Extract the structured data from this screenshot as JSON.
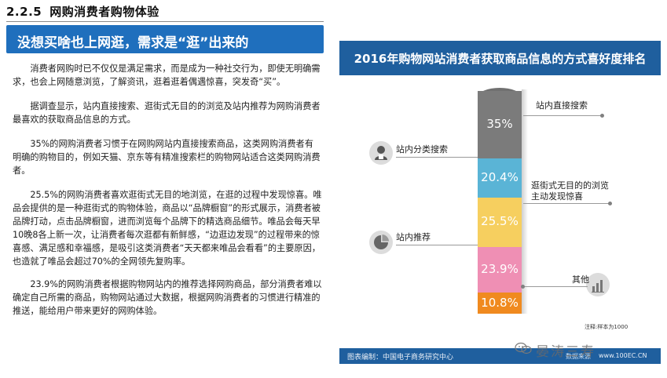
{
  "section": {
    "number": "2.2.5",
    "title": "网购消费者购物体验"
  },
  "banner": {
    "text": "没想买啥也上网逛，需求是“逛”出来的"
  },
  "paragraphs": [
    "消费者网购时已不仅仅是满足需求，而是成为一种社交行为，即使无明确需求，也会上网随意浏览，了解资讯，逛着逛着偶遇惊喜，突发奇“买”。",
    "据调查显示，站内直接搜索、逛街式无目的的浏览及站内推荐为网购消费者最喜欢的获取商品信息的方式。",
    "35%的网购消费者习惯于在网购网站内直接搜索商品，这类网购消费者有明确的购物目的，例如天猫、京东等有精准搜索栏的购物网站适合这类网购消费者。",
    "25.5%的网购消费者喜欢逛街式无目的地浏览，在逛的过程中发现惊喜。唯品会提供的是一种逛街式的购物体验，商品以“品牌橱窗”的形式展示，消费者被品牌打动，点击品牌橱窗，进而浏览每个品牌下的精选商品细节。唯品会每天早10晚8各上新一次，让消费者每次逛都有新鲜感，“边逛边发现”的过程带来的惊喜感、满足感和幸福感，是吸引这类消费者“天天都来唯品会看看”的主要原因，也造就了唯品会超过70%的全网领先复购率。",
    "23.9%的网购消费者根据购物网站内的推荐选择网购商品，部分消费者难以确定自己所需的商品，购物网站通过大数据，根据网购消费者的习惯进行精准的推送，能给用户带来更好的网购体验。"
  ],
  "chart_data": {
    "type": "bar",
    "title": "2016年购物网站消费者获取商品信息的方式喜好度排名",
    "categories": [
      "站内直接搜索",
      "站内分类搜索",
      "逛街式无目的的浏览主动发现惊喜",
      "站内推荐",
      "其他"
    ],
    "values": [
      35,
      20.4,
      25.5,
      23.9,
      10.8
    ],
    "value_labels": [
      "35%",
      "20.4%",
      "25.5%",
      "23.9%",
      "10.8%"
    ],
    "label_lines": [
      [
        "站内直接搜索"
      ],
      [
        "站内分类搜索"
      ],
      [
        "逛街式无目的的浏览",
        "主动发现惊喜"
      ],
      [
        "站内推荐"
      ],
      [
        "其他"
      ]
    ],
    "colors": [
      "#7b7b7b",
      "#5ab4d6",
      "#f6cf5f",
      "#ef8fb4",
      "#f08a1f"
    ],
    "note": "注释:样本为1000",
    "footer": "图表编制：中国电子商务研究中心",
    "footer_right": "数据来源",
    "footer_url": "www.100EC.CN"
  },
  "watermark": {
    "text": "晏涛三寿"
  }
}
